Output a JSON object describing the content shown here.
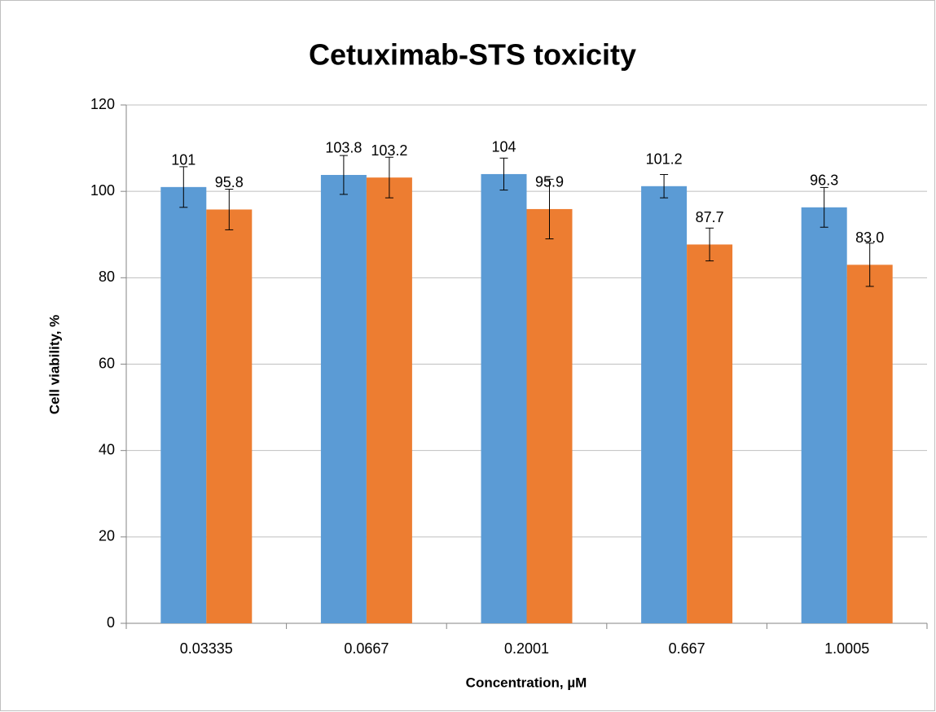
{
  "chart_data": {
    "type": "bar",
    "title": "Cetuximab-STS toxicity",
    "x_label": "Concentration,  µM",
    "y_label": "Cell viability, %",
    "categories": [
      "0.03335",
      "0.0667",
      "0.2001",
      "0.667",
      "1.0005"
    ],
    "series": [
      {
        "color": "#5b9bd5",
        "values": [
          101,
          103.8,
          104,
          101.2,
          96.3
        ],
        "errors": [
          4.7,
          4.5,
          3.7,
          2.7,
          4.6
        ]
      },
      {
        "color": "#ed7d31",
        "values": [
          95.8,
          103.2,
          95.9,
          87.7,
          83.0
        ],
        "value_labels": [
          "95.8",
          "103.2",
          "95.9",
          "87.7",
          "83.0"
        ],
        "errors": [
          4.7,
          4.7,
          6.9,
          3.8,
          5.0
        ]
      }
    ],
    "ylim": [
      0,
      120
    ],
    "yticks": [
      0,
      20,
      40,
      60,
      80,
      100,
      120
    ],
    "grid": true
  }
}
